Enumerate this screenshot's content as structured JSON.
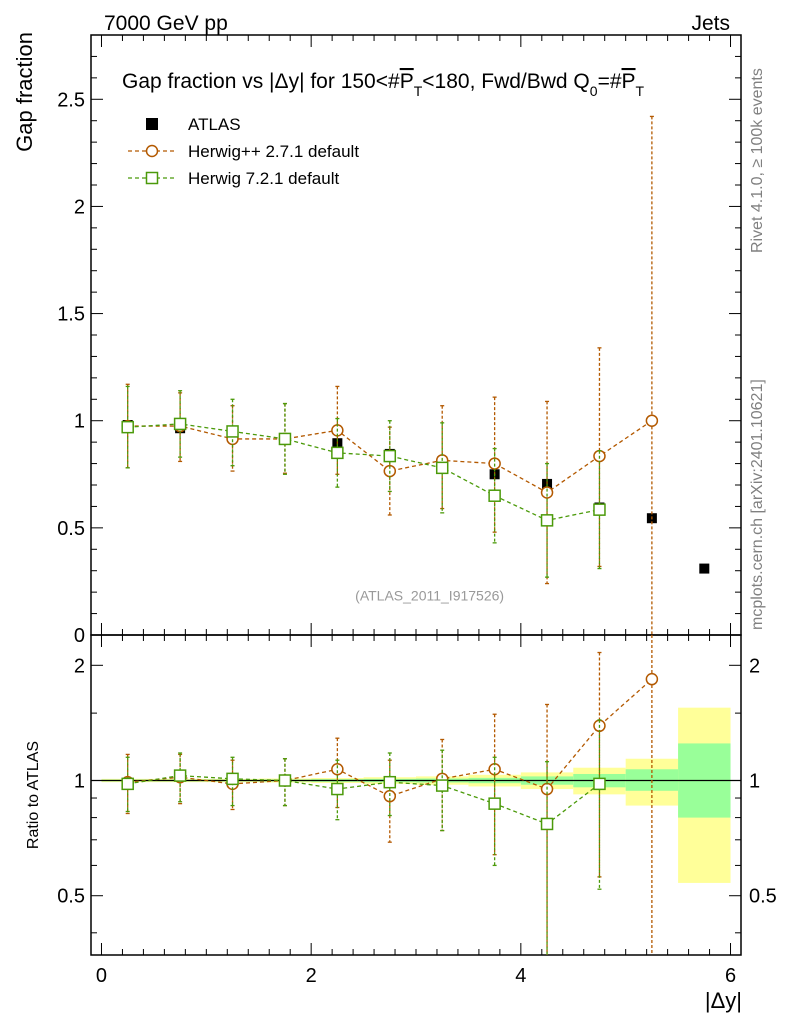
{
  "header": {
    "left": "7000 GeV pp",
    "right": "Jets"
  },
  "side_labels": {
    "rivet": "Rivet 4.1.0, ≥ 100k events",
    "arxiv": "mcplots.cern.ch [arXiv:2401.10621]"
  },
  "chart_data": [
    {
      "type": "scatter",
      "title": "Gap fraction vs |Δy| for 150<#P̅T<180, Fwd/Bwd Q0=#P̅T",
      "title_parts": {
        "pre": "Gap fraction vs |",
        "delta": "Δ",
        "mid": "y| for 150<#",
        "p": "P",
        "t": "T",
        "mid2": "<180, Fwd/Bwd Q",
        "zero": "0",
        "eq": "=#",
        "p2": "P",
        "t2": "T"
      },
      "ylabel": "Gap fraction",
      "xlabel": "|Δy|",
      "xlim": [
        -0.1,
        6.1
      ],
      "ylim": [
        0,
        2.8
      ],
      "yticks": [
        {
          "v": 0,
          "label": "0"
        },
        {
          "v": 0.5,
          "label": "0.5"
        },
        {
          "v": 1,
          "label": "1"
        },
        {
          "v": 1.5,
          "label": "1.5"
        },
        {
          "v": 2,
          "label": "2"
        },
        {
          "v": 2.5,
          "label": "2.5"
        }
      ],
      "watermark": "(ATLAS_2011_I917526)",
      "data": {
        "name": "ATLAS",
        "color": "#000000",
        "x": [
          0.25,
          0.75,
          1.25,
          1.75,
          2.25,
          2.75,
          3.25,
          3.75,
          4.25,
          4.75,
          5.25,
          5.75
        ],
        "y": [
          0.98,
          0.965,
          0.94,
          0.915,
          0.895,
          0.845,
          0.81,
          0.75,
          0.705,
          0.595,
          0.545,
          0.31
        ]
      },
      "series": [
        {
          "name": "Herwig++ 2.7.1 default",
          "color": "#b35900",
          "marker": "circle",
          "x": [
            0.25,
            0.75,
            1.25,
            1.75,
            2.25,
            2.75,
            3.25,
            3.75,
            4.25,
            4.75,
            5.25
          ],
          "y": [
            0.975,
            0.975,
            0.915,
            0.915,
            0.955,
            0.765,
            0.815,
            0.8,
            0.665,
            0.835,
            1.0
          ],
          "lo": [
            0.78,
            0.81,
            0.765,
            0.755,
            0.75,
            0.56,
            0.59,
            0.48,
            0.24,
            0.32,
            0.0
          ],
          "hi": [
            1.17,
            1.13,
            1.07,
            1.08,
            1.16,
            0.97,
            1.07,
            1.11,
            1.09,
            1.34,
            2.42
          ]
        },
        {
          "name": "Herwig 7.2.1 default",
          "color": "#4b9a0a",
          "marker": "square",
          "x": [
            0.25,
            0.75,
            1.25,
            1.75,
            2.25,
            2.75,
            3.25,
            3.75,
            4.25,
            4.75
          ],
          "y": [
            0.97,
            0.985,
            0.95,
            0.915,
            0.85,
            0.835,
            0.78,
            0.65,
            0.535,
            0.585
          ],
          "lo": [
            0.78,
            0.83,
            0.79,
            0.75,
            0.69,
            0.67,
            0.57,
            0.43,
            0.27,
            0.31
          ],
          "hi": [
            1.16,
            1.14,
            1.1,
            1.08,
            1.01,
            1.0,
            0.99,
            0.87,
            0.8,
            0.86
          ]
        }
      ]
    },
    {
      "type": "scatter",
      "ylabel": "Ratio to ATLAS",
      "ylog": true,
      "ylim": [
        0.35,
        2.4
      ],
      "yticks": [
        {
          "v": 0.5,
          "label": "0.5"
        },
        {
          "v": 1,
          "label": "1"
        },
        {
          "v": 2,
          "label": "2"
        }
      ],
      "xticks": [
        {
          "v": 0,
          "label": "0"
        },
        {
          "v": 2,
          "label": "2"
        },
        {
          "v": 4,
          "label": "4"
        },
        {
          "v": 6,
          "label": "6"
        }
      ],
      "bands": {
        "edges": [
          0,
          0.5,
          1,
          1.5,
          2,
          2.5,
          3,
          3.5,
          4,
          4.5,
          5,
          5.5,
          6
        ],
        "inner_lo": [
          0.995,
          0.995,
          0.995,
          0.994,
          0.992,
          0.99,
          0.988,
          0.984,
          0.975,
          0.96,
          0.94,
          0.8
        ],
        "inner_hi": [
          1.005,
          1.005,
          1.005,
          1.006,
          1.008,
          1.01,
          1.012,
          1.016,
          1.025,
          1.04,
          1.07,
          1.25
        ],
        "outer_lo": [
          0.99,
          0.99,
          0.99,
          0.988,
          0.985,
          0.98,
          0.975,
          0.965,
          0.95,
          0.92,
          0.86,
          0.54
        ],
        "outer_hi": [
          1.01,
          1.01,
          1.01,
          1.012,
          1.015,
          1.02,
          1.025,
          1.035,
          1.05,
          1.08,
          1.14,
          1.55
        ],
        "inner_color": "#99ff99",
        "outer_color": "#ffff99"
      },
      "series": [
        {
          "name": "Herwig++ 2.7.1 default",
          "color": "#b35900",
          "marker": "circle",
          "x": [
            0.25,
            0.75,
            1.25,
            1.75,
            2.25,
            2.75,
            3.25,
            3.75,
            4.25,
            4.75,
            5.25
          ],
          "y": [
            0.99,
            1.02,
            0.98,
            1.0,
            1.07,
            0.91,
            1.01,
            1.07,
            0.95,
            1.39,
            1.84
          ],
          "lo": [
            0.82,
            0.87,
            0.84,
            0.86,
            0.85,
            0.69,
            0.74,
            0.64,
            0.35,
            0.56,
            0.3
          ],
          "hi": [
            1.17,
            1.17,
            1.13,
            1.14,
            1.29,
            1.13,
            1.28,
            1.49,
            1.58,
            2.16,
            2.4
          ]
        },
        {
          "name": "Herwig 7.2.1 default",
          "color": "#4b9a0a",
          "marker": "square",
          "x": [
            0.25,
            0.75,
            1.25,
            1.75,
            2.25,
            2.75,
            3.25,
            3.75,
            4.25,
            4.75
          ],
          "y": [
            0.98,
            1.03,
            1.01,
            1.0,
            0.95,
            0.99,
            0.97,
            0.87,
            0.77,
            0.98
          ],
          "lo": [
            0.83,
            0.88,
            0.86,
            0.86,
            0.79,
            0.81,
            0.74,
            0.6,
            0.35,
            0.52
          ],
          "hi": [
            1.15,
            1.18,
            1.15,
            1.14,
            1.13,
            1.18,
            1.2,
            1.15,
            1.12,
            1.44
          ]
        }
      ]
    }
  ]
}
